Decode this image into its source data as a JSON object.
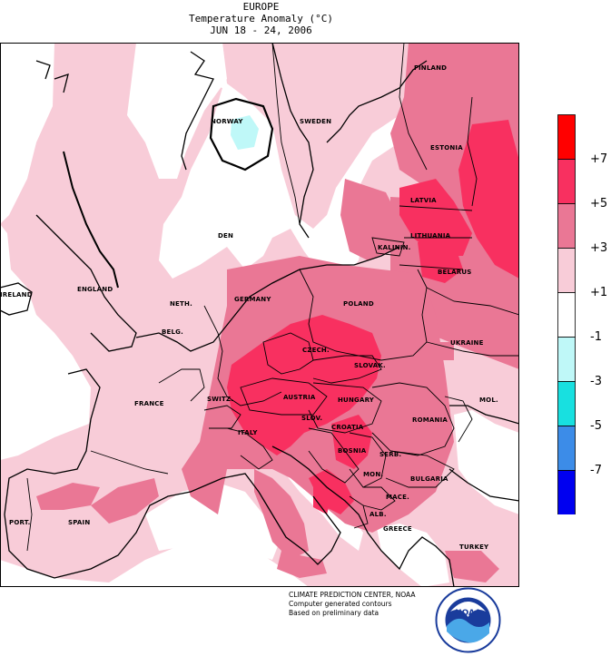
{
  "header": {
    "region": "EUROPE",
    "variable": "Temperature Anomaly (°C)",
    "period": "JUN 18 - 24, 2006"
  },
  "legend": {
    "bins": [
      {
        "color": "#ff0000"
      },
      {
        "color": "#f83060"
      },
      {
        "color": "#ea7795"
      },
      {
        "color": "#f8ccd8"
      },
      {
        "color": "#ffffff"
      },
      {
        "color": "#bff8f8"
      },
      {
        "color": "#18e0e0"
      },
      {
        "color": "#3c8ce8"
      },
      {
        "color": "#0000f0"
      }
    ],
    "ticks": [
      "+7",
      "+5",
      "+3",
      "+1",
      "-1",
      "-3",
      "-5",
      "-7"
    ]
  },
  "map_labels": {
    "finland": "FINLAND",
    "norway": "NORWAY",
    "sweden": "SWEDEN",
    "estonia": "ESTONIA",
    "latvia": "LATVIA",
    "lithuania": "LITHUANIA",
    "denmark": "DEN",
    "kaliningrad": "KALININ.",
    "belarus": "BELARUS",
    "england": "ENGLAND",
    "ireland": "IRELAND",
    "netherlands": "NETH.",
    "germany": "GERMANY",
    "poland": "POLAND",
    "belgium": "BELG.",
    "czech": "CZECH.",
    "slovakia": "SLOVAK.",
    "ukraine": "UKRAINE",
    "france": "FRANCE",
    "switzerland": "SWITZ.",
    "austria": "AUSTRIA",
    "hungary": "HUNGARY",
    "moldova": "MOL.",
    "slovenia": "SLOV.",
    "croatia": "CROATIA",
    "romania": "ROMANIA",
    "italy": "ITALY",
    "bosnia": "BOSNIA",
    "serbia": "SERB.",
    "montenegro": "MON.",
    "bulgaria": "BULGARIA",
    "macedonia": "MACE.",
    "portugal": "PORT.",
    "spain": "SPAIN",
    "albania": "ALB.",
    "greece": "GREECE",
    "turkey": "TURKEY"
  },
  "credits": {
    "line1": "CLIMATE PREDICTION CENTER, NOAA",
    "line2": "Computer generated contours",
    "line3": "Based on preliminary data"
  },
  "logo": {
    "text": "NOAA"
  }
}
